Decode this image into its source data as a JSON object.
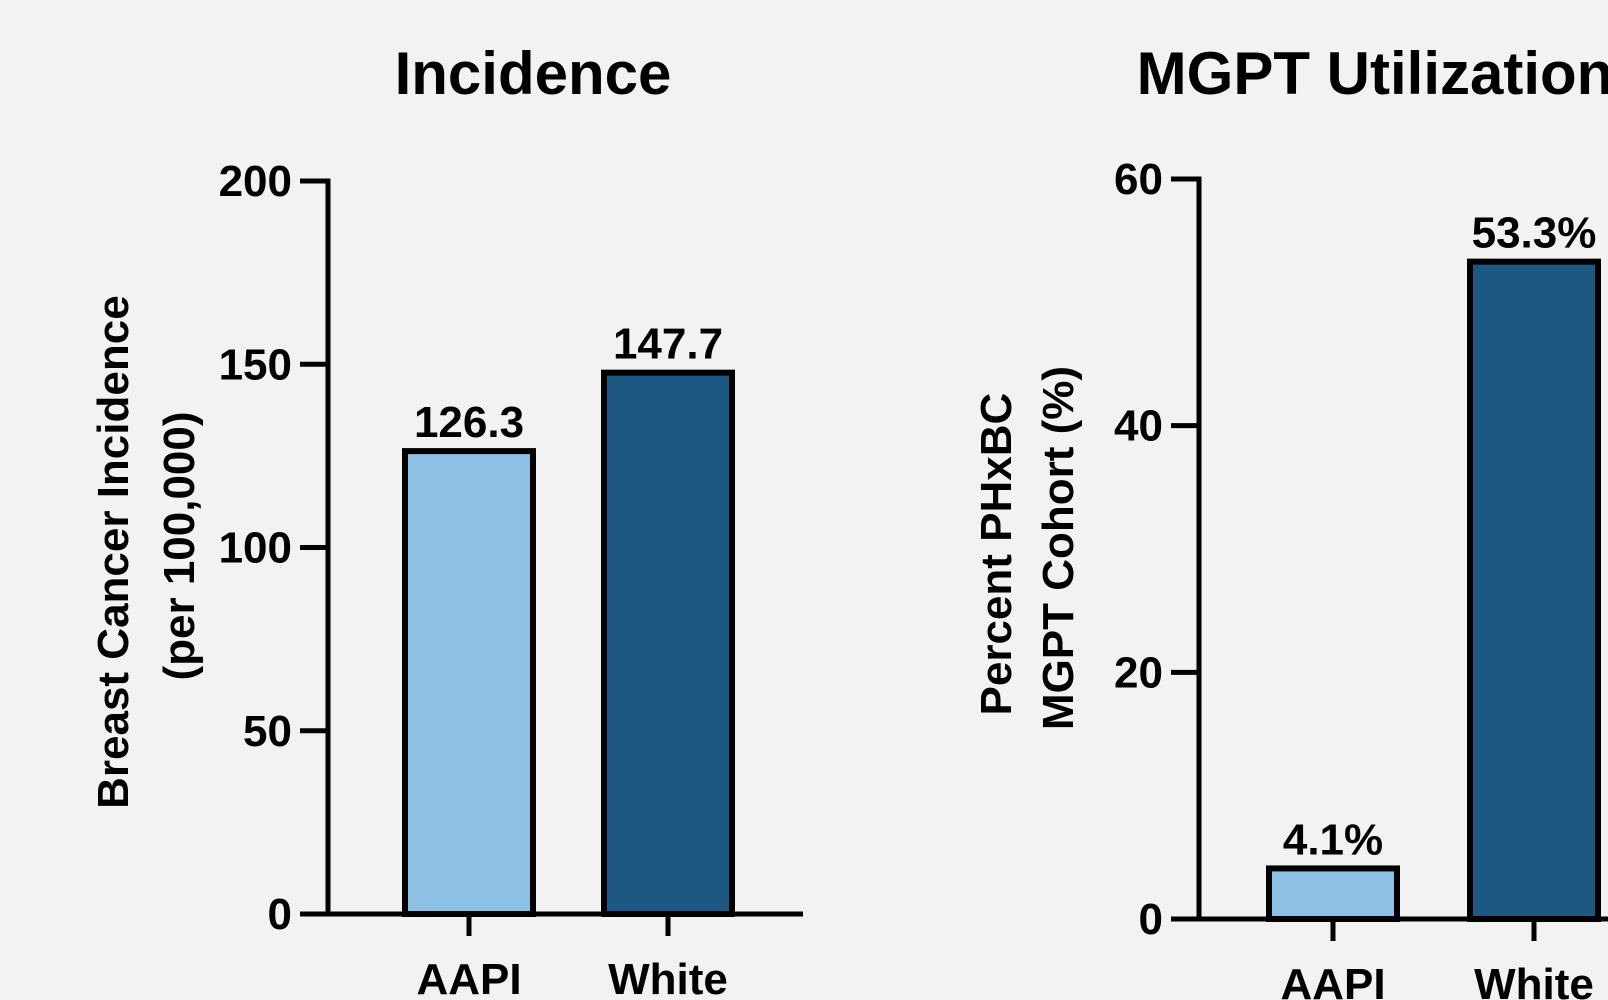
{
  "colors": {
    "background": "#f2f2f2",
    "aapi": "#8cc1e5",
    "white": "#1d5882",
    "stroke": "#000000"
  },
  "chart_data": [
    {
      "type": "bar",
      "title": "Incidence",
      "ylabel_lines": [
        "Breast Cancer Incidence",
        "(per 100,000)"
      ],
      "xlabel": "",
      "categories": [
        "AAPI",
        "White"
      ],
      "values": [
        126.3,
        147.7
      ],
      "data_labels": [
        "126.3",
        "147.7"
      ],
      "ylim": [
        0,
        200
      ],
      "yticks": [
        0,
        50,
        100,
        150,
        200
      ],
      "ytick_labels": [
        "0",
        "50",
        "100",
        "150",
        "200"
      ],
      "grid": false,
      "legend": "none"
    },
    {
      "type": "bar",
      "title": "MGPT Utilization",
      "ylabel_lines": [
        "Percent PHxBC",
        "MGPT Cohort (%)"
      ],
      "xlabel": "",
      "categories": [
        "AAPI",
        "White"
      ],
      "values": [
        4.1,
        53.3
      ],
      "data_labels": [
        "4.1%",
        "53.3%"
      ],
      "ylim": [
        0,
        60
      ],
      "yticks": [
        0,
        20,
        40,
        60
      ],
      "ytick_labels": [
        "0",
        "20",
        "40",
        "60"
      ],
      "grid": false,
      "legend": "none"
    }
  ]
}
